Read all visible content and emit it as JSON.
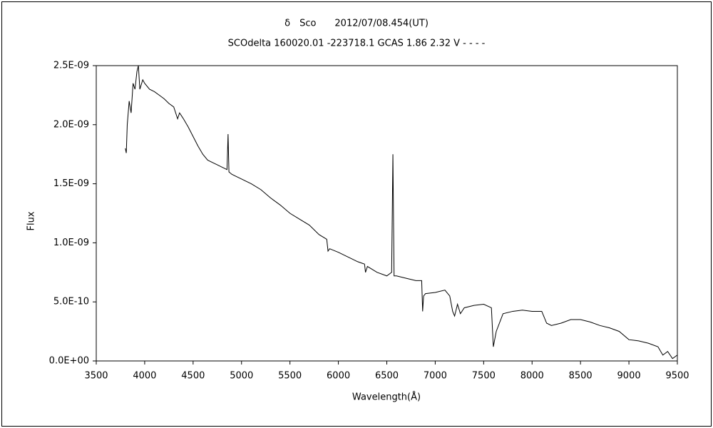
{
  "chart_data": {
    "type": "line",
    "title": "δ　Sco　　2012/07/08.454(UT)",
    "subtitle": "SCOdelta 160020.01 -223718.1 GCAS 1.86 2.32 V - - - -",
    "x_label": "Wavelength(Å)",
    "y_label": "Flux",
    "color": "#000000",
    "xlim": [
      3500,
      9500
    ],
    "xticks": [
      3500,
      4000,
      4500,
      5000,
      5500,
      6000,
      6500,
      7000,
      7500,
      8000,
      8500,
      9000,
      9500
    ],
    "ylim": [
      0,
      2.5e-09
    ],
    "yticks": [
      {
        "value": 0,
        "label": "0.0E+00"
      },
      {
        "value": 5e-10,
        "label": "5.0E-10"
      },
      {
        "value": 1e-09,
        "label": "1.0E-09"
      },
      {
        "value": 1.5e-09,
        "label": "1.5E-09"
      },
      {
        "value": 2e-09,
        "label": "2.0E-09"
      },
      {
        "value": 2.5e-09,
        "label": "2.5E-09"
      }
    ],
    "x": [
      3800,
      3810,
      3820,
      3840,
      3860,
      3880,
      3900,
      3920,
      3935,
      3950,
      3980,
      4000,
      4050,
      4100,
      4150,
      4200,
      4250,
      4300,
      4340,
      4360,
      4400,
      4450,
      4500,
      4550,
      4600,
      4650,
      4700,
      4750,
      4800,
      4850,
      4861,
      4870,
      4900,
      4950,
      5000,
      5100,
      5200,
      5300,
      5400,
      5500,
      5600,
      5700,
      5800,
      5880,
      5893,
      5910,
      6000,
      6100,
      6200,
      6270,
      6280,
      6300,
      6400,
      6500,
      6550,
      6563,
      6575,
      6600,
      6700,
      6800,
      6860,
      6870,
      6880,
      6900,
      7000,
      7100,
      7150,
      7180,
      7200,
      7230,
      7260,
      7300,
      7400,
      7500,
      7580,
      7600,
      7630,
      7700,
      7800,
      7900,
      8000,
      8100,
      8150,
      8200,
      8300,
      8400,
      8500,
      8600,
      8700,
      8800,
      8900,
      9000,
      9100,
      9200,
      9300,
      9350,
      9400,
      9450,
      9500
    ],
    "values": [
      1.8e-09,
      1.76e-09,
      2e-09,
      2.2e-09,
      2.1e-09,
      2.35e-09,
      2.3e-09,
      2.45e-09,
      2.5e-09,
      2.3e-09,
      2.38e-09,
      2.35e-09,
      2.3e-09,
      2.28e-09,
      2.25e-09,
      2.22e-09,
      2.18e-09,
      2.15e-09,
      2.05e-09,
      2.1e-09,
      2.05e-09,
      1.98e-09,
      1.9e-09,
      1.82e-09,
      1.75e-09,
      1.7e-09,
      1.68e-09,
      1.66e-09,
      1.64e-09,
      1.62e-09,
      1.92e-09,
      1.6e-09,
      1.58e-09,
      1.56e-09,
      1.54e-09,
      1.5e-09,
      1.45e-09,
      1.38e-09,
      1.32e-09,
      1.25e-09,
      1.2e-09,
      1.15e-09,
      1.07e-09,
      1.03e-09,
      9.3e-10,
      9.5e-10,
      9.2e-10,
      8.8e-10,
      8.4e-10,
      8.2e-10,
      7.5e-10,
      8e-10,
      7.5e-10,
      7.2e-10,
      7.5e-10,
      1.75e-09,
      7.2e-10,
      7.2e-10,
      7e-10,
      6.8e-10,
      6.8e-10,
      4.2e-10,
      5.5e-10,
      5.7e-10,
      5.8e-10,
      6e-10,
      5.5e-10,
      4.2e-10,
      3.8e-10,
      4.8e-10,
      4e-10,
      4.5e-10,
      4.7e-10,
      4.8e-10,
      4.5e-10,
      1.2e-10,
      2.5e-10,
      4e-10,
      4.2e-10,
      4.3e-10,
      4.2e-10,
      4.2e-10,
      3.2e-10,
      3e-10,
      3.2e-10,
      3.5e-10,
      3.5e-10,
      3.3e-10,
      3e-10,
      2.8e-10,
      2.5e-10,
      1.8e-10,
      1.7e-10,
      1.5e-10,
      1.2e-10,
      5e-11,
      8e-11,
      2e-11,
      5e-11
    ]
  }
}
